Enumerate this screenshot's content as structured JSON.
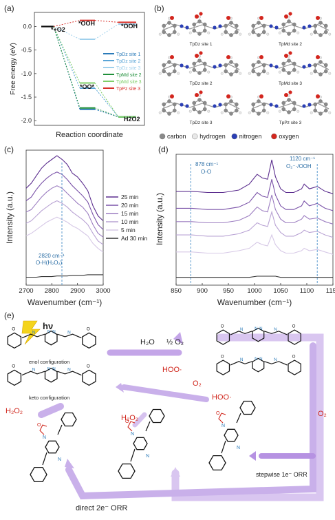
{
  "panels": {
    "a": {
      "label": "(a)",
      "ylabel": "Free energy (eV)",
      "xlabel": "Reaction coordinate",
      "yticks": [
        "0.0",
        "-0.5",
        "-1.0",
        "-1.5",
        "-2.0"
      ],
      "species": {
        "start": "*+O2",
        "ooh_mid": "*OOH",
        "ooh_right": "*OOH",
        "oo": "*OO*",
        "h2o2": "H2O2"
      },
      "legend": [
        {
          "name": "TpDz site 1",
          "color": "#2b7bb9"
        },
        {
          "name": "TpDz site 2",
          "color": "#5aa5d6"
        },
        {
          "name": "TpDz site 3",
          "color": "#9fd0ec"
        },
        {
          "name": "TpMd site 2",
          "color": "#1f8f3a"
        },
        {
          "name": "TpMd site 3",
          "color": "#7fcf68"
        },
        {
          "name": "TpPz site 3",
          "color": "#d9312b"
        }
      ]
    },
    "b": {
      "label": "(b)",
      "structures": [
        "TpDz site 1",
        "TpMd site 2",
        "TpDz site 2",
        "TpMd site 3",
        "TpDz site 3",
        "TpPz site 3"
      ],
      "atom_legend": [
        {
          "name": "carbon",
          "color": "#8a8a8a"
        },
        {
          "name": "hydrogen",
          "color": "#e8e8e8"
        },
        {
          "name": "nitrogen",
          "color": "#2b3fb5"
        },
        {
          "name": "oxygen",
          "color": "#d3261e"
        }
      ]
    },
    "c": {
      "label": "(c)",
      "ylabel": "Intensity (a.u.)",
      "xlabel": "Wavenumber (cm⁻¹)",
      "xticks": [
        "2700",
        "2800",
        "2900",
        "3000"
      ],
      "annotation_line1": "2820 cm⁻¹",
      "annotation_line2": "O-H(H₂O₂)",
      "legend": [
        {
          "name": "25 min",
          "color": "#5b2d8e"
        },
        {
          "name": "20 min",
          "color": "#7a52a8"
        },
        {
          "name": "15 min",
          "color": "#9b7cc0"
        },
        {
          "name": "10 min",
          "color": "#b9a3d4"
        },
        {
          "name": "5 min",
          "color": "#d6c8e6"
        },
        {
          "name": "Ad 30 min",
          "color": "#333333"
        }
      ]
    },
    "d": {
      "label": "(d)",
      "ylabel": "Intensity (a.u.)",
      "xlabel": "Wavenumber (cm⁻¹)",
      "xticks": [
        "850",
        "900",
        "950",
        "1000",
        "1050",
        "1100",
        "1150"
      ],
      "annotation_left_line1": "878 cm⁻¹",
      "annotation_left_line2": "O-O",
      "annotation_right_line1": "1120 cm⁻¹",
      "annotation_right_line2": "O₂⁻·/OOH"
    },
    "e": {
      "label": "(e)",
      "hv": "hν",
      "enol": "enol configuration",
      "keto": "keto configuration",
      "h2o": "H₂O",
      "half_o2": "½ O₂",
      "hoo1": "HOO·",
      "o2_mid": "O₂",
      "hoo2": "HOO·",
      "o2_right": "O₂",
      "h2o2_left": "H₂O₂",
      "h2o2_mid": "H₂O₂",
      "stepwise": "stepwise 1e⁻ ORR",
      "direct": "direct 2e⁻ ORR"
    }
  },
  "chart_data": [
    {
      "type": "line",
      "panel": "a",
      "xlabel": "Reaction coordinate",
      "ylabel": "Free energy (eV)",
      "ylim": [
        -2.1,
        0.3
      ],
      "steps": [
        "*+O2",
        "*OOH / *OO*",
        "H2O2"
      ],
      "series": [
        {
          "name": "TpDz site 1",
          "values": [
            0.0,
            -1.76,
            -1.92
          ]
        },
        {
          "name": "TpDz site 2",
          "values": [
            0.0,
            -1.31,
            -1.92
          ]
        },
        {
          "name": "TpDz site 3",
          "values": [
            0.0,
            -0.27,
            0.05
          ]
        },
        {
          "name": "TpMd site 2",
          "values": [
            0.0,
            -1.73,
            -1.92
          ]
        },
        {
          "name": "TpMd site 3",
          "values": [
            0.0,
            -1.2,
            -1.92
          ]
        },
        {
          "name": "TpPz site 3",
          "values": [
            0.0,
            0.13,
            0.09
          ]
        }
      ]
    },
    {
      "type": "line",
      "panel": "c",
      "xlabel": "Wavenumber (cm⁻¹)",
      "ylabel": "Intensity (a.u.)",
      "xlim": [
        2700,
        3000
      ],
      "x": [
        2700,
        2720,
        2740,
        2760,
        2780,
        2800,
        2820,
        2840,
        2860,
        2880,
        2900,
        2920,
        2940,
        2960,
        2980,
        3000
      ],
      "series": [
        {
          "name": "25 min",
          "values": [
            0.74,
            0.78,
            0.84,
            0.9,
            0.94,
            0.97,
            1.0,
            0.97,
            0.93,
            0.86,
            0.83,
            0.78,
            0.72,
            0.6,
            0.52,
            0.48
          ]
        },
        {
          "name": "20 min",
          "values": [
            0.64,
            0.67,
            0.73,
            0.78,
            0.82,
            0.85,
            0.87,
            0.85,
            0.81,
            0.76,
            0.72,
            0.68,
            0.63,
            0.53,
            0.45,
            0.41
          ]
        },
        {
          "name": "15 min",
          "values": [
            0.55,
            0.57,
            0.62,
            0.67,
            0.71,
            0.74,
            0.76,
            0.74,
            0.7,
            0.66,
            0.62,
            0.59,
            0.54,
            0.45,
            0.38,
            0.35
          ]
        },
        {
          "name": "10 min",
          "values": [
            0.46,
            0.48,
            0.52,
            0.56,
            0.59,
            0.62,
            0.64,
            0.62,
            0.59,
            0.55,
            0.52,
            0.49,
            0.45,
            0.38,
            0.32,
            0.29
          ]
        },
        {
          "name": "5 min",
          "values": [
            0.36,
            0.38,
            0.41,
            0.44,
            0.47,
            0.49,
            0.51,
            0.49,
            0.47,
            0.44,
            0.42,
            0.39,
            0.36,
            0.3,
            0.26,
            0.23
          ]
        },
        {
          "name": "Ad 30 min",
          "values": [
            0.03,
            0.03,
            0.03,
            0.035,
            0.035,
            0.035,
            0.04,
            0.04,
            0.04,
            0.045,
            0.045,
            0.045,
            0.05,
            0.05,
            0.05,
            0.05
          ]
        }
      ]
    },
    {
      "type": "line",
      "panel": "d",
      "xlabel": "Wavenumber (cm⁻¹)",
      "ylabel": "Intensity (a.u.)",
      "xlim": [
        850,
        1150
      ],
      "x": [
        850,
        880,
        910,
        940,
        970,
        990,
        1005,
        1015,
        1025,
        1033,
        1040,
        1050,
        1060,
        1075,
        1090,
        1095,
        1105,
        1120,
        1135,
        1150
      ],
      "series": [
        {
          "name": "25 min",
          "values": [
            0.74,
            0.74,
            0.73,
            0.73,
            0.75,
            0.8,
            0.88,
            0.85,
            0.84,
            1.0,
            0.86,
            0.76,
            0.73,
            0.73,
            0.76,
            0.8,
            0.76,
            0.78,
            0.74,
            0.72
          ]
        },
        {
          "name": "20 min",
          "values": [
            0.6,
            0.6,
            0.59,
            0.59,
            0.61,
            0.65,
            0.73,
            0.7,
            0.69,
            0.84,
            0.71,
            0.62,
            0.59,
            0.59,
            0.62,
            0.66,
            0.62,
            0.64,
            0.6,
            0.58
          ]
        },
        {
          "name": "15 min",
          "values": [
            0.49,
            0.49,
            0.48,
            0.48,
            0.5,
            0.54,
            0.61,
            0.58,
            0.57,
            0.71,
            0.59,
            0.51,
            0.48,
            0.48,
            0.51,
            0.54,
            0.51,
            0.52,
            0.49,
            0.47
          ]
        },
        {
          "name": "10 min",
          "values": [
            0.38,
            0.38,
            0.37,
            0.37,
            0.39,
            0.42,
            0.48,
            0.46,
            0.45,
            0.57,
            0.46,
            0.4,
            0.37,
            0.37,
            0.4,
            0.42,
            0.4,
            0.41,
            0.38,
            0.36
          ]
        },
        {
          "name": "5 min",
          "values": [
            0.24,
            0.24,
            0.23,
            0.23,
            0.25,
            0.27,
            0.32,
            0.3,
            0.29,
            0.38,
            0.3,
            0.25,
            0.23,
            0.23,
            0.25,
            0.27,
            0.25,
            0.26,
            0.24,
            0.22
          ]
        },
        {
          "name": "Ad 30 min",
          "values": [
            0.03,
            0.03,
            0.03,
            0.03,
            0.03,
            0.03,
            0.04,
            0.04,
            0.04,
            0.04,
            0.04,
            0.03,
            0.03,
            0.03,
            0.03,
            0.03,
            0.03,
            0.03,
            0.03,
            0.03
          ]
        }
      ]
    }
  ]
}
